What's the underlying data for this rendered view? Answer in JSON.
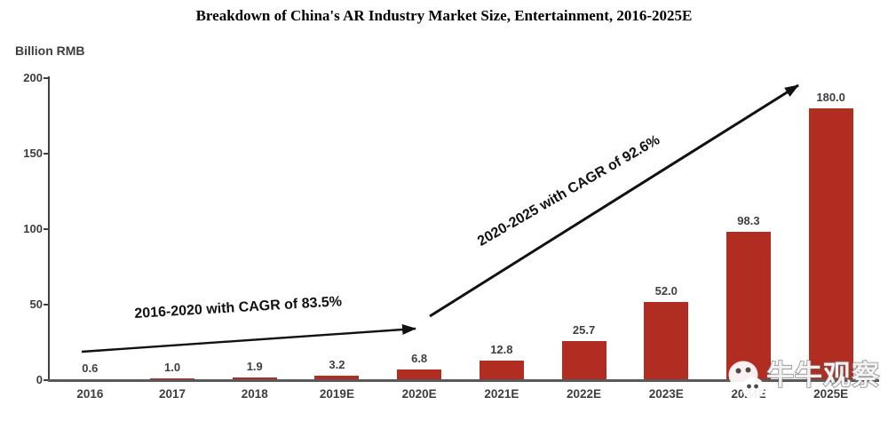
{
  "title": "Breakdown of China's AR Industry Market Size, Entertainment, 2016-2025E",
  "chart_data": {
    "type": "bar",
    "title": "Breakdown of China's AR Industry Market Size, Entertainment, 2016-2025E",
    "ylabel": "Billion RMB",
    "xlabel": "",
    "categories": [
      "2016",
      "2017",
      "2018",
      "2019E",
      "2020E",
      "2021E",
      "2022E",
      "2023E",
      "2024E",
      "2025E"
    ],
    "values": [
      0.6,
      1.0,
      1.9,
      3.2,
      6.8,
      12.8,
      25.7,
      52.0,
      98.3,
      180.0
    ],
    "ylim": [
      0,
      200
    ],
    "yticks": [
      0,
      50,
      100,
      150,
      200
    ],
    "grid": false,
    "legend": false,
    "annotations": [
      {
        "text": "2016-2020 with CAGR  of 83.5%"
      },
      {
        "text": "2020-2025 with CAGR  of 92.6%"
      }
    ]
  },
  "watermark": {
    "text": "牛牛观察",
    "icon": "chat-bubbles-face-icon"
  },
  "colors": {
    "bar": "#B22D21",
    "axis_x": "#58595B",
    "axis_y": "#404040",
    "tick_label": "#3D3D3D",
    "value_label": "#3F3F3F",
    "arrow": "#111111",
    "title": "#000000"
  }
}
